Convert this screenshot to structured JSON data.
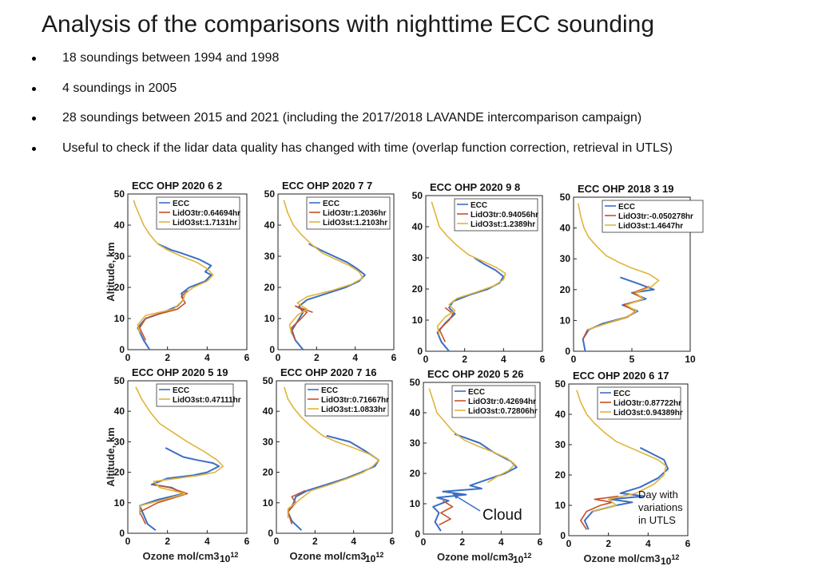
{
  "title": "Analysis of the comparisons with nighttime ECC sounding",
  "bullets": [
    "18 soundings between 1994 and 1998",
    "4 soundings in 2005",
    "28 soundings between 2015 and 2021 (including the 2017/2018 LAVANDE intercomparison campaign)",
    "Useful to check if the lidar data quality has changed with time (overlap function correction, retrieval in UTLS)"
  ],
  "colors": {
    "ECC": "#3a6fc4",
    "LidO3tr": "#c8502a",
    "LidO3st": "#e0b43a"
  },
  "annotations": {
    "cloud_label": "Cloud",
    "utls_note": [
      "Day with",
      "variations",
      "in UTLS"
    ]
  },
  "chart_data": [
    {
      "type": "line",
      "title": "ECC OHP 2020    6    2",
      "xlabel": "",
      "ylabel": "Altitude, km",
      "xlim": [
        0,
        6
      ],
      "ylim": [
        0,
        50
      ],
      "xticks": [
        0,
        2,
        4,
        6
      ],
      "yticks": [
        0,
        10,
        20,
        30,
        40,
        50
      ],
      "x_multiplier": "",
      "legend": [
        "ECC",
        "LidO3tr:0.64694hr",
        "LidO3st:1.7131hr"
      ],
      "series": [
        {
          "name": "ECC",
          "x": [
            1.1,
            0.8,
            0.5,
            0.9,
            1.8,
            2.5,
            2.8,
            2.7,
            3.1,
            3.9,
            4.2,
            3.9,
            4.2,
            3.6,
            2.7,
            2.2,
            1.5
          ],
          "y": [
            0,
            3,
            7,
            10,
            12,
            14,
            16,
            18,
            20,
            22,
            24,
            25,
            27,
            29,
            31,
            32,
            34
          ]
        },
        {
          "name": "LidO3tr",
          "x": [
            0.9,
            0.6,
            0.9,
            1.3,
            2.5,
            2.9,
            2.7,
            3.0
          ],
          "y": [
            3,
            7,
            10,
            11,
            13,
            15,
            17,
            19
          ]
        },
        {
          "name": "LidO3st",
          "x": [
            0.6,
            0.5,
            0.9,
            2.3,
            2.8,
            2.9,
            3.3,
            4.0,
            4.3,
            4.0,
            3.5,
            2.7,
            2.0,
            1.5,
            1.1,
            0.8,
            0.6,
            0.4,
            0.3
          ],
          "y": [
            5,
            8,
            11,
            13,
            16,
            18,
            20,
            22,
            24,
            26,
            28,
            30,
            32,
            34,
            37,
            40,
            43,
            46,
            48
          ]
        }
      ]
    },
    {
      "type": "line",
      "title": "ECC OHP 2020    7    7",
      "xlabel": "",
      "ylabel": "",
      "xlim": [
        0,
        6
      ],
      "ylim": [
        0,
        50
      ],
      "xticks": [
        0,
        2,
        4,
        6
      ],
      "yticks": [
        0,
        10,
        20,
        30,
        40,
        50
      ],
      "x_multiplier": "",
      "legend": [
        "ECC",
        "LidO3tr:1.2036hr",
        "LidO3st:1.2103hr"
      ],
      "series": [
        {
          "name": "ECC",
          "x": [
            1.3,
            0.9,
            0.7,
            1.0,
            1.3,
            1.1,
            1.5,
            2.5,
            3.5,
            4.2,
            4.5,
            4.1,
            3.6,
            2.9,
            2.2,
            1.6
          ],
          "y": [
            0,
            3,
            6,
            9,
            12,
            14,
            16,
            18,
            20,
            22,
            24,
            26,
            28,
            30,
            32,
            34
          ]
        },
        {
          "name": "LidO3tr",
          "x": [
            0.9,
            0.7,
            1.2,
            1.5,
            0.9,
            1.8
          ],
          "y": [
            3,
            7,
            10,
            12,
            14,
            12
          ]
        },
        {
          "name": "LidO3st",
          "x": [
            0.7,
            0.6,
            1.0,
            1.5,
            1.0,
            1.5,
            2.8,
            3.8,
            4.4,
            4.2,
            3.7,
            3.0,
            2.3,
            1.7,
            1.2,
            0.8,
            0.5,
            0.3
          ],
          "y": [
            5,
            8,
            11,
            13,
            15,
            17,
            19,
            21,
            23,
            25,
            27,
            29,
            31,
            34,
            37,
            40,
            44,
            48
          ]
        }
      ]
    },
    {
      "type": "line",
      "title": "ECC OHP 2020    9    8",
      "xlabel": "",
      "ylabel": "",
      "xlim": [
        0,
        6
      ],
      "ylim": [
        0,
        50
      ],
      "xticks": [
        0,
        2,
        4,
        6
      ],
      "yticks": [
        0,
        10,
        20,
        30,
        40,
        50
      ],
      "x_multiplier": "",
      "legend": [
        "ECC",
        "LidO3tr:0.94056hr",
        "LidO3st:1.2389hr"
      ],
      "series": [
        {
          "name": "ECC",
          "x": [
            1.2,
            0.8,
            0.6,
            1.0,
            1.5,
            1.2,
            1.4,
            2.2,
            3.2,
            3.8,
            4.0,
            3.6,
            3.0,
            2.5
          ],
          "y": [
            0,
            3,
            6,
            9,
            12,
            14,
            16,
            18,
            20,
            22,
            24,
            26,
            28,
            30
          ]
        },
        {
          "name": "LidO3tr",
          "x": [
            1.0,
            0.7,
            1.2,
            1.4,
            1.0
          ],
          "y": [
            3,
            7,
            10,
            12,
            14
          ]
        },
        {
          "name": "LidO3st",
          "x": [
            0.7,
            0.6,
            1.0,
            1.5,
            1.2,
            1.6,
            2.6,
            3.5,
            4.0,
            4.1,
            3.6,
            2.9,
            2.2,
            1.6,
            1.1,
            0.7,
            0.5,
            0.3
          ],
          "y": [
            5,
            8,
            11,
            13,
            15,
            17,
            19,
            21,
            23,
            25,
            27,
            29,
            31,
            34,
            37,
            40,
            44,
            48
          ]
        }
      ]
    },
    {
      "type": "line",
      "title": "ECC OHP 2018    3    19",
      "xlabel": "",
      "ylabel": "",
      "xlim": [
        0,
        10
      ],
      "ylim": [
        0,
        50
      ],
      "xticks": [
        0,
        5,
        10
      ],
      "yticks": [
        0,
        10,
        20,
        30,
        40,
        50
      ],
      "x_multiplier": "",
      "legend": [
        "ECC",
        "LidO3tr:-0.050278hr",
        "LidO3st:1.4647hr"
      ],
      "series": [
        {
          "name": "ECC",
          "x": [
            1.0,
            0.8,
            1.3,
            2.5,
            4.5,
            5.5,
            4.2,
            6.2,
            5.0,
            6.9,
            5.5,
            4.0
          ],
          "y": [
            0,
            4,
            7,
            9,
            11,
            13,
            15,
            17,
            19,
            20,
            22,
            24
          ]
        },
        {
          "name": "LidO3tr",
          "x": [
            0.8,
            1.2,
            2.8,
            4.6,
            5.3,
            4.3,
            6.0,
            5.1,
            6.5
          ],
          "y": [
            4,
            7,
            9,
            11,
            13,
            15,
            17,
            19,
            21
          ]
        },
        {
          "name": "LidO3st",
          "x": [
            1.2,
            2.8,
            4.5,
            5.4,
            4.5,
            6.0,
            5.3,
            6.7,
            7.3,
            6.5,
            5.0,
            3.8,
            2.8,
            2.0,
            1.3,
            0.9,
            0.6,
            0.4
          ],
          "y": [
            7,
            9,
            11,
            13,
            15,
            17,
            19,
            21,
            23,
            25,
            27,
            29,
            31,
            34,
            37,
            40,
            44,
            48
          ]
        }
      ]
    },
    {
      "type": "line",
      "title": "ECC OHP 2020    5    19",
      "xlabel": "Ozone mol/cm3",
      "ylabel": "Altitude, km",
      "xlim": [
        0,
        6
      ],
      "ylim": [
        0,
        50
      ],
      "xticks": [
        0,
        2,
        4,
        6
      ],
      "yticks": [
        0,
        10,
        20,
        30,
        40,
        50
      ],
      "x_multiplier": "10",
      "legend": [
        "ECC",
        "LidO3st:0.47111hr"
      ],
      "series": [
        {
          "name": "ECC",
          "x": [
            1.4,
            1.0,
            0.8,
            0.6,
            1.5,
            2.8,
            2.2,
            1.2,
            2.0,
            3.3,
            4.0,
            4.6,
            4.3,
            3.5,
            2.8,
            1.9
          ],
          "y": [
            1,
            3,
            6,
            9,
            11,
            13,
            15,
            16,
            18,
            19,
            20,
            22,
            23,
            24,
            25,
            28
          ]
        },
        {
          "name": "LidO3tr",
          "x": [
            0.9,
            0.6,
            1.5,
            3.0,
            2.1,
            1.3
          ],
          "y": [
            3,
            7,
            10,
            13,
            15,
            16
          ]
        },
        {
          "name": "LidO3st",
          "x": [
            0.6,
            0.6,
            1.8,
            2.9,
            1.6,
            1.3,
            2.5,
            3.6,
            4.4,
            4.8,
            4.5,
            3.8,
            3.0,
            2.3,
            1.6,
            1.1,
            0.7,
            0.4
          ],
          "y": [
            6,
            9,
            11,
            13,
            15,
            17,
            18,
            19,
            20,
            22,
            24,
            27,
            30,
            33,
            36,
            40,
            44,
            48
          ]
        }
      ]
    },
    {
      "type": "line",
      "title": "ECC OHP 2020    7    16",
      "xlabel": "Ozone mol/cm3",
      "ylabel": "",
      "xlim": [
        0,
        6
      ],
      "ylim": [
        0,
        50
      ],
      "xticks": [
        0,
        2,
        4,
        6
      ],
      "yticks": [
        0,
        10,
        20,
        30,
        40,
        50
      ],
      "x_multiplier": "10",
      "legend": [
        "ECC",
        "LidO3tr:0.71667hr",
        "LidO3st:1.0833hr"
      ],
      "series": [
        {
          "name": "ECC",
          "x": [
            1.3,
            0.8,
            0.6,
            0.9,
            1.0,
            1.6,
            2.6,
            3.6,
            4.4,
            5.1,
            5.3,
            4.6,
            3.8,
            2.6
          ],
          "y": [
            1,
            4,
            7,
            10,
            12,
            14,
            16,
            18,
            20,
            22,
            24,
            27,
            30,
            32
          ]
        },
        {
          "name": "LidO3tr",
          "x": [
            0.8,
            0.6,
            1.0,
            0.8,
            1.5
          ],
          "y": [
            3,
            7,
            10,
            12,
            14
          ]
        },
        {
          "name": "LidO3st",
          "x": [
            0.6,
            0.6,
            1.2,
            1.8,
            2.8,
            3.7,
            4.5,
            5.0,
            5.3,
            4.8,
            4.0,
            3.1,
            2.4,
            1.8,
            1.3,
            0.9,
            0.6,
            0.4
          ],
          "y": [
            5,
            8,
            11,
            14,
            16,
            18,
            20,
            22,
            24,
            26,
            28,
            30,
            32,
            35,
            38,
            41,
            44,
            48
          ]
        }
      ]
    },
    {
      "type": "line",
      "title": "ECC OHP 2020    5    26",
      "xlabel": "Ozone mol/cm3",
      "ylabel": "",
      "xlim": [
        0,
        6
      ],
      "ylim": [
        0,
        50
      ],
      "xticks": [
        0,
        2,
        4,
        6
      ],
      "yticks": [
        0,
        10,
        20,
        30,
        40,
        50
      ],
      "x_multiplier": "10",
      "legend": [
        "ECC",
        "LidO3tr:0.42694hr",
        "LidO3st:0.72806hr"
      ],
      "series": [
        {
          "name": "ECC",
          "x": [
            0.9,
            0.6,
            0.8,
            0.5,
            1.3,
            0.7,
            2.2,
            1.0,
            3.0,
            2.4,
            3.3,
            4.2,
            4.8,
            4.5,
            3.6,
            2.9,
            1.6
          ],
          "y": [
            1,
            4,
            7,
            9,
            11,
            12,
            13,
            14,
            15,
            16,
            18,
            20,
            22,
            24,
            27,
            30,
            33
          ]
        },
        {
          "name": "LidO3tr",
          "x": [
            0.8,
            1.4,
            0.9,
            1.5,
            1.0
          ],
          "y": [
            3,
            5,
            7,
            9,
            11
          ]
        },
        {
          "name": "LidO3st",
          "x": [
            3.3,
            3.8,
            4.4,
            4.7,
            4.3,
            3.6,
            2.8,
            2.1,
            1.5,
            1.1,
            0.7,
            0.5,
            0.3
          ],
          "y": [
            17,
            19,
            21,
            23,
            25,
            27,
            29,
            31,
            34,
            37,
            40,
            44,
            48
          ]
        }
      ]
    },
    {
      "type": "line",
      "title": "ECC OHP 2020    6    17",
      "xlabel": "Ozone mol/cm3",
      "ylabel": "",
      "xlim": [
        0,
        6
      ],
      "ylim": [
        0,
        50
      ],
      "xticks": [
        0,
        2,
        4,
        6
      ],
      "yticks": [
        0,
        10,
        20,
        30,
        40,
        50
      ],
      "x_multiplier": "10",
      "legend": [
        "ECC",
        "LidO3tr:0.87722hr",
        "LidO3st:0.94389hr"
      ],
      "series": [
        {
          "name": "ECC",
          "x": [
            1.0,
            0.8,
            1.2,
            2.4,
            3.2,
            2.1,
            3.8,
            2.6,
            3.6,
            4.5,
            5.0,
            4.8,
            4.2,
            3.6
          ],
          "y": [
            2,
            5,
            8,
            10,
            11,
            12,
            13,
            14,
            16,
            19,
            22,
            25,
            27,
            29
          ]
        },
        {
          "name": "LidO3tr",
          "x": [
            0.9,
            0.6,
            0.9,
            1.6,
            2.2,
            1.3,
            2.5
          ],
          "y": [
            2,
            5,
            8,
            10,
            11,
            12,
            13
          ]
        },
        {
          "name": "LidO3st",
          "x": [
            1.2,
            2.4,
            2.0,
            3.4,
            4.3,
            4.8,
            4.9,
            4.5,
            3.8,
            3.1,
            2.4,
            1.8,
            1.3,
            0.9,
            0.6,
            0.4
          ],
          "y": [
            8,
            10,
            12,
            14,
            17,
            20,
            23,
            25,
            27,
            29,
            31,
            34,
            37,
            40,
            44,
            48
          ]
        }
      ]
    }
  ]
}
